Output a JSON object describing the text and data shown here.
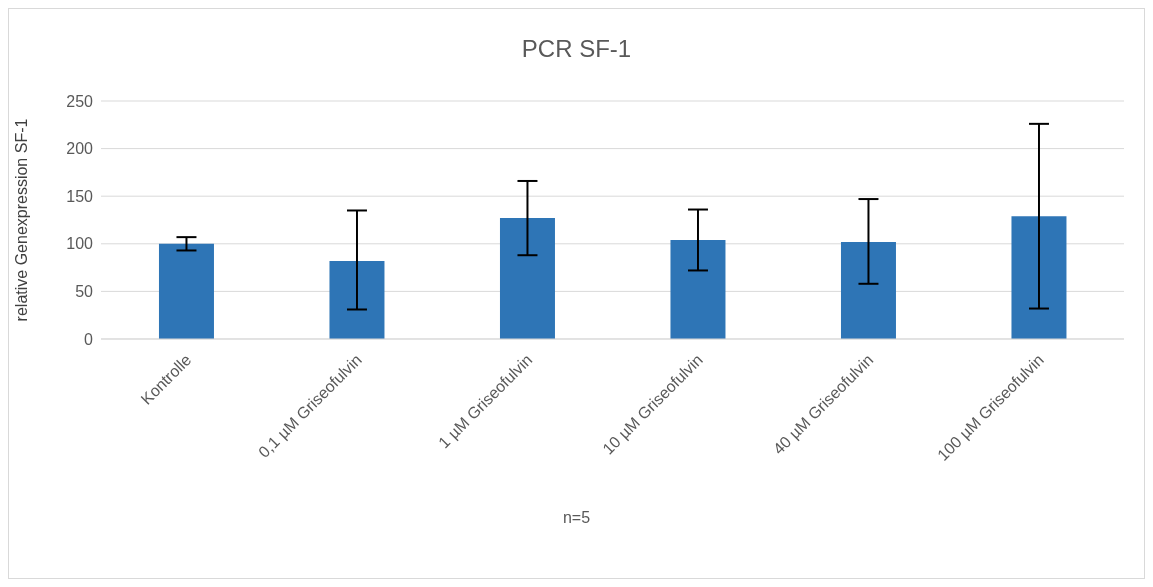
{
  "chart_data": {
    "type": "bar",
    "title": "PCR SF-1",
    "xlabel": "n=5",
    "ylabel": "relative Genexpression SF-1",
    "categories": [
      "Kontrolle",
      "0,1 µM Griseofulvin",
      "1 µM Griseofulvin",
      "10 µM Griseofulvin",
      "40 µM Griseofulvin",
      "100 µM Griseofulvin"
    ],
    "values": [
      100,
      82,
      127,
      104,
      102,
      129
    ],
    "errors": [
      [
        93,
        107
      ],
      [
        31,
        135
      ],
      [
        88,
        166
      ],
      [
        72,
        136
      ],
      [
        58,
        147
      ],
      [
        32,
        226
      ]
    ],
    "color": "#2e75b6",
    "ylim": [
      0,
      250
    ],
    "yticks": [
      0,
      50,
      100,
      150,
      200,
      250
    ],
    "grid": "y",
    "legend": false
  }
}
